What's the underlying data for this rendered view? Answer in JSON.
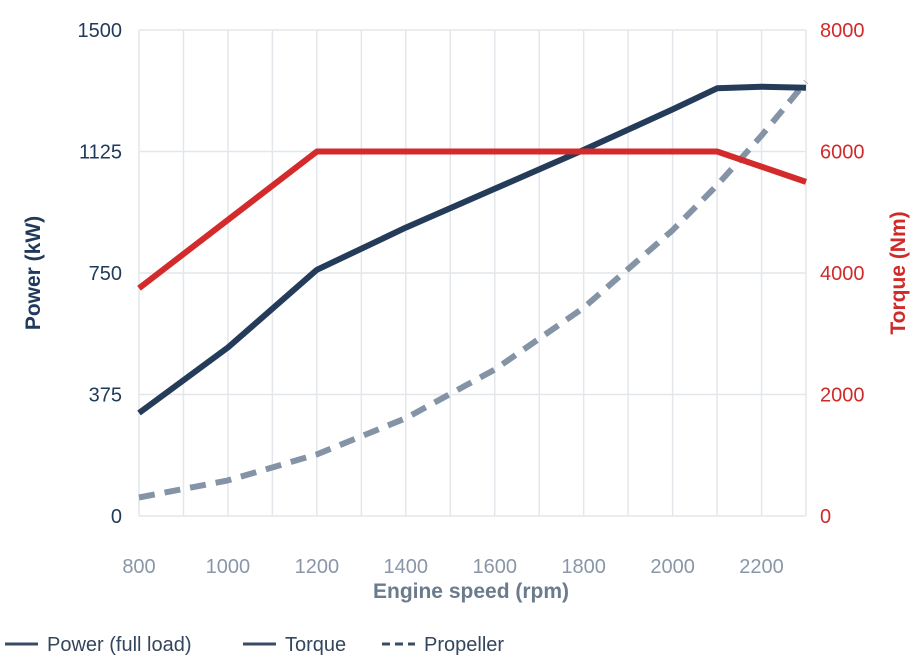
{
  "chart_data": {
    "type": "line",
    "xlabel": "Engine speed (rpm)",
    "ylabel": "Power (kW)",
    "y2label": "Torque (Nm)",
    "xlim": [
      800,
      2300
    ],
    "ylim": [
      0,
      1500
    ],
    "y2lim": [
      0,
      8000
    ],
    "x_ticks": [
      "800",
      "1000",
      "1200",
      "1400",
      "1600",
      "1800",
      "2000",
      "2200"
    ],
    "y_ticks": [
      "0",
      "375",
      "750",
      "1125",
      "1500"
    ],
    "y2_ticks": [
      "0",
      "2000",
      "4000",
      "6000",
      "8000"
    ],
    "grid": true,
    "legend_position": "bottom",
    "series": [
      {
        "name": "Power (full load)",
        "axis": "left",
        "color": "#243b59",
        "style": "solid",
        "x": [
          800,
          1000,
          1200,
          1400,
          1600,
          1800,
          2000,
          2100,
          2200,
          2300
        ],
        "y": [
          318,
          520,
          760,
          890,
          1010,
          1130,
          1255,
          1320,
          1325,
          1322
        ]
      },
      {
        "name": "Torque",
        "axis": "right",
        "color": "#d32b2b",
        "style": "solid",
        "x": [
          800,
          1200,
          1400,
          1600,
          1800,
          2000,
          2100,
          2300
        ],
        "y": [
          3750,
          6000,
          6000,
          6000,
          6000,
          6000,
          6000,
          5500
        ]
      },
      {
        "name": "Propeller",
        "axis": "left",
        "color": "#8494a6",
        "style": "dashed",
        "x": [
          800,
          1000,
          1200,
          1400,
          1600,
          1800,
          2000,
          2100,
          2200,
          2300
        ],
        "y": [
          57,
          110,
          190,
          302,
          452,
          643,
          882,
          1021,
          1174,
          1340
        ]
      }
    ]
  }
}
